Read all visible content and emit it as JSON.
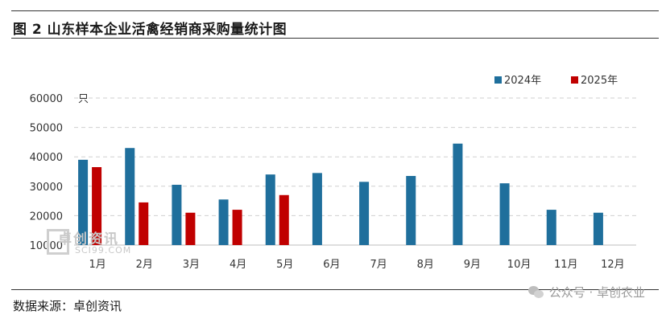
{
  "header": {
    "title": "图 2 山东样本企业活禽经销商采购量统计图"
  },
  "footer": {
    "source": "数据来源：卓创资讯",
    "wechat": "公众号 · 卓创农业"
  },
  "watermark": {
    "brand": "卓创资讯",
    "site": "SCI99.COM"
  },
  "colors": {
    "series_2024": "#1f6f9c",
    "series_2025": "#c00000",
    "grid": "#cfcfcf"
  },
  "chart_data": {
    "type": "bar",
    "title": "",
    "xlabel": "",
    "ylabel": "只",
    "ylim": [
      10000,
      60000
    ],
    "yticks": [
      10000,
      20000,
      30000,
      40000,
      50000,
      60000
    ],
    "grid": true,
    "legend_position": "top-right",
    "categories": [
      "1月",
      "2月",
      "3月",
      "4月",
      "5月",
      "6月",
      "7月",
      "8月",
      "9月",
      "10月",
      "11月",
      "12月"
    ],
    "series": [
      {
        "name": "2024年",
        "color": "#1f6f9c",
        "values": [
          39000,
          43000,
          30500,
          25500,
          34000,
          34500,
          31500,
          33500,
          44500,
          31000,
          22000,
          21000
        ]
      },
      {
        "name": "2025年",
        "color": "#c00000",
        "values": [
          36500,
          24500,
          21000,
          22000,
          27000,
          null,
          null,
          null,
          null,
          null,
          null,
          null
        ]
      }
    ]
  }
}
